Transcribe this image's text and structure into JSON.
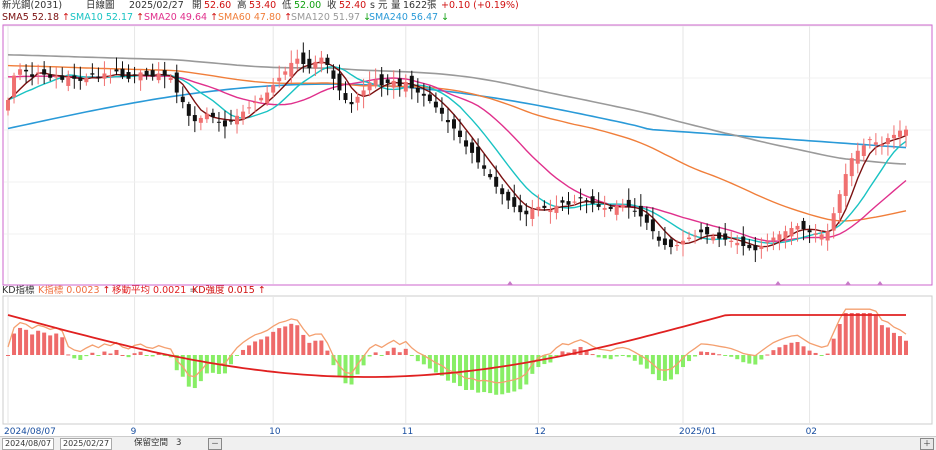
{
  "header": {
    "stock": "新光鋼(2031)",
    "period": "日線圖",
    "date": "2025/02/27",
    "open_label": "開",
    "open": "52.60",
    "high_label": "高",
    "high": "53.40",
    "low_label": "低",
    "low": "52.00",
    "close_label": "收",
    "close": "52.40",
    "unit_s": "s",
    "unit_yuan": "元",
    "vol_label": "量",
    "vol": "1622",
    "vol_unit": "張",
    "change": "+0.10 (+0.19%)"
  },
  "sma": [
    {
      "label": "SMA5",
      "value": "52.18",
      "arrow": "↑",
      "color": "#7b1010"
    },
    {
      "label": "SMA10",
      "value": "52.17",
      "arrow": "↑",
      "color": "#19c3c3"
    },
    {
      "label": "SMA20",
      "value": "49.64",
      "arrow": "↑",
      "color": "#e0308c"
    },
    {
      "label": "SMA60",
      "value": "47.80",
      "arrow": "↑",
      "color": "#f07e3a"
    },
    {
      "label": "SMA120",
      "value": "51.97",
      "arrow": "↓",
      "color": "#9a9a9a"
    },
    {
      "label": "SMA240",
      "value": "56.47",
      "arrow": "↓",
      "color": "#2a9ad8"
    }
  ],
  "indicator": {
    "name": "KD指標",
    "m1_label": "K指標",
    "m1_value": "0.0023",
    "m1_arrow": "↑",
    "m2_label": "移動平均",
    "m2_value": "0.0021",
    "m2_arrow": "=",
    "m3_label": "KD強度",
    "m3_value": "0.015",
    "m3_arrow": "↑"
  },
  "axis": {
    "x_labels": [
      "2024/08/07",
      "9",
      "10",
      "11",
      "12",
      "2025/01",
      "02"
    ]
  },
  "footer": {
    "start_date": "2024/08/07",
    "end_date": "2025/02/27",
    "keep_label": "保留空間",
    "keep_value": "3",
    "zoom_out": "－",
    "zoom_in": "＋"
  },
  "colors": {
    "up": "#f07070",
    "down": "#111111",
    "hist_pos": "#ee6a6a",
    "hist_neg": "#88ee66",
    "signal": "#e02020",
    "osc": "#f4a070",
    "border": "#cc66cc",
    "date_axis": "#1a4fa0"
  },
  "chart_data": {
    "type": "candlestick",
    "series": [
      {
        "name": "SMA5",
        "color": "#7b1010"
      },
      {
        "name": "SMA10",
        "color": "#19c3c3"
      },
      {
        "name": "SMA20",
        "color": "#e0308c"
      },
      {
        "name": "SMA60",
        "color": "#f07e3a"
      },
      {
        "name": "SMA120",
        "color": "#9a9a9a"
      },
      {
        "name": "SMA240",
        "color": "#2a9ad8"
      }
    ],
    "closes": [
      55.2,
      57.5,
      58.1,
      57.9,
      57.4,
      57.8,
      57.6,
      57.3,
      57.5,
      57.1,
      57.4,
      57.2,
      57.0,
      57.3,
      57.6,
      57.3,
      57.7,
      57.5,
      57.9,
      57.4,
      57.2,
      57.6,
      57.8,
      57.5,
      57.4,
      57.7,
      57.5,
      57.3,
      55.9,
      55.0,
      53.7,
      53.2,
      53.5,
      53.9,
      53.6,
      53.1,
      52.7,
      53.2,
      53.7,
      54.1,
      54.5,
      55.0,
      55.4,
      55.9,
      56.6,
      57.3,
      57.9,
      58.7,
      59.1,
      58.6,
      58.2,
      58.8,
      59.2,
      58.5,
      57.2,
      56.1,
      55.2,
      54.8,
      55.5,
      56.1,
      56.8,
      57.1,
      56.6,
      56.8,
      57.0,
      56.5,
      56.9,
      56.3,
      55.9,
      55.6,
      55.1,
      54.5,
      53.9,
      53.1,
      52.5,
      51.7,
      50.8,
      50.2,
      49.3,
      48.7,
      47.9,
      47.0,
      46.3,
      45.7,
      45.1,
      44.6,
      44.4,
      44.9,
      45.1,
      45.0,
      44.8,
      45.2,
      45.5,
      45.3,
      45.6,
      45.9,
      45.7,
      45.4,
      45.1,
      45.0,
      44.9,
      45.2,
      45.3,
      45.1,
      44.7,
      44.2,
      43.6,
      42.8,
      41.9,
      41.5,
      41.3,
      41.5,
      41.9,
      42.2,
      42.4,
      42.7,
      42.5,
      42.3,
      42.1,
      42.0,
      41.9,
      41.7,
      41.4,
      41.2,
      41.0,
      41.4,
      41.8,
      42.2,
      42.5,
      42.8,
      43.1,
      43.3,
      43.0,
      42.7,
      42.6,
      42.5,
      42.8,
      44.5,
      46.3,
      48.2,
      49.7,
      50.4,
      50.9,
      51.5,
      51.2,
      51.0,
      51.6,
      51.9,
      52.3,
      52.4
    ]
  }
}
